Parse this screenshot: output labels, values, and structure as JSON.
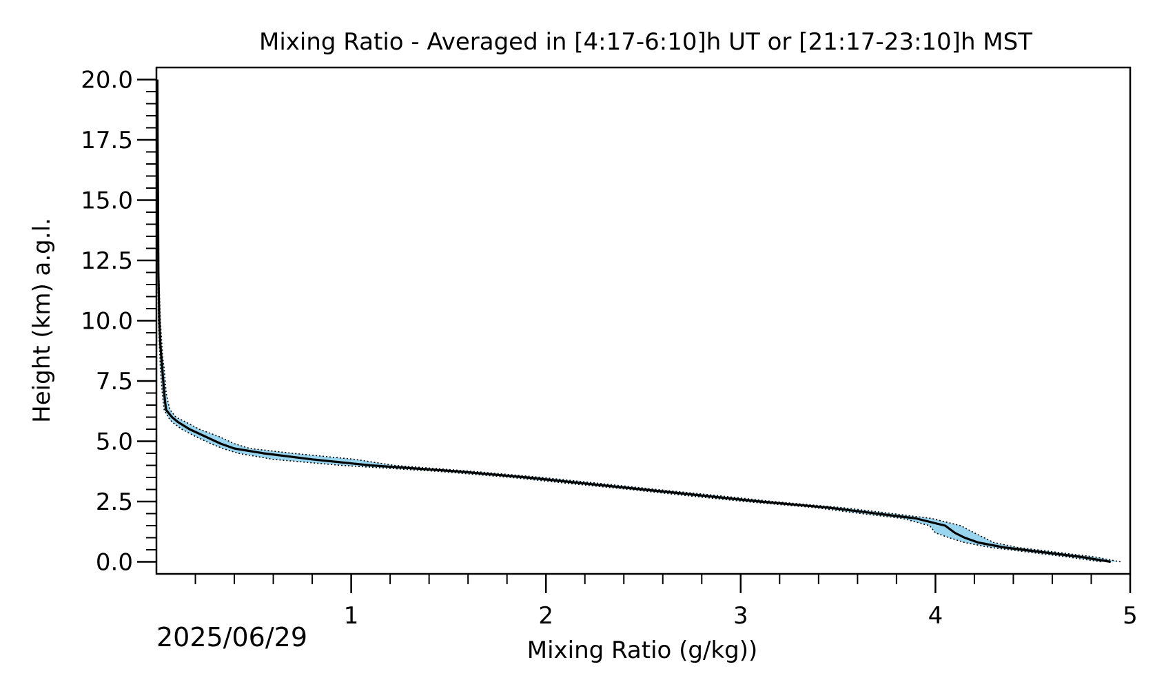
{
  "chart_data": {
    "type": "line",
    "title": "Mixing Ratio - Averaged in [4:17-6:10]h UT or [21:17-23:10]h MST",
    "xlabel": "Mixing Ratio (g/kg))",
    "ylabel": "Height (km) a.g.l.",
    "date_label": "2025/06/29",
    "xlim": [
      0,
      5
    ],
    "ylim": [
      -0.5,
      20.5
    ],
    "x_ticks": [
      1,
      2,
      3,
      4,
      5
    ],
    "x_tick_labels": [
      "1",
      "2",
      "3",
      "4",
      "5"
    ],
    "x_minor_step": 0.2,
    "y_ticks": [
      0,
      2.5,
      5,
      7.5,
      10,
      12.5,
      15,
      17.5,
      20
    ],
    "y_tick_labels": [
      "0.0",
      "2.5",
      "5.0",
      "7.5",
      "10.0",
      "12.5",
      "15.0",
      "17.5",
      "20.0"
    ],
    "y_minor_step": 0.5,
    "grid": false,
    "colors": {
      "line": "#000000",
      "band": "#87ceeb"
    },
    "series": [
      {
        "height": [
          0.0,
          0.2,
          0.4,
          0.6,
          0.8,
          1.0,
          1.2,
          1.5,
          1.8,
          2.0,
          2.25,
          2.5,
          2.75,
          3.0,
          3.25,
          3.5,
          3.75,
          4.0,
          4.25,
          4.5,
          4.7,
          4.9,
          5.2,
          5.5,
          5.8,
          6.0,
          6.3,
          6.6,
          7.0,
          7.5,
          8.0,
          8.5,
          9.0,
          10.0,
          12.0,
          15.0,
          17.5,
          20.0
        ],
        "mean": [
          4.9,
          4.75,
          4.55,
          4.35,
          4.22,
          4.15,
          4.1,
          4.05,
          3.9,
          3.7,
          3.45,
          3.1,
          2.8,
          2.5,
          2.2,
          1.9,
          1.55,
          1.1,
          0.8,
          0.55,
          0.4,
          0.33,
          0.25,
          0.17,
          0.11,
          0.08,
          0.05,
          0.045,
          0.04,
          0.035,
          0.03,
          0.025,
          0.02,
          0.015,
          0.01,
          0.008,
          0.006,
          0.005
        ],
        "lower": [
          4.85,
          4.68,
          4.48,
          4.28,
          4.15,
          4.07,
          4.0,
          3.97,
          3.83,
          3.62,
          3.38,
          3.02,
          2.72,
          2.43,
          2.12,
          1.82,
          1.45,
          0.95,
          0.6,
          0.42,
          0.34,
          0.28,
          0.2,
          0.13,
          0.08,
          0.06,
          0.04,
          0.035,
          0.03,
          0.025,
          0.02,
          0.018,
          0.015,
          0.01,
          0.008,
          0.006,
          0.004,
          0.003
        ],
        "upper": [
          4.95,
          4.82,
          4.62,
          4.42,
          4.3,
          4.25,
          4.2,
          4.13,
          3.98,
          3.78,
          3.52,
          3.17,
          2.88,
          2.57,
          2.28,
          1.98,
          1.63,
          1.22,
          1.02,
          0.7,
          0.48,
          0.4,
          0.32,
          0.22,
          0.15,
          0.1,
          0.07,
          0.06,
          0.05,
          0.045,
          0.04,
          0.032,
          0.028,
          0.02,
          0.012,
          0.01,
          0.008,
          0.007
        ]
      }
    ]
  }
}
